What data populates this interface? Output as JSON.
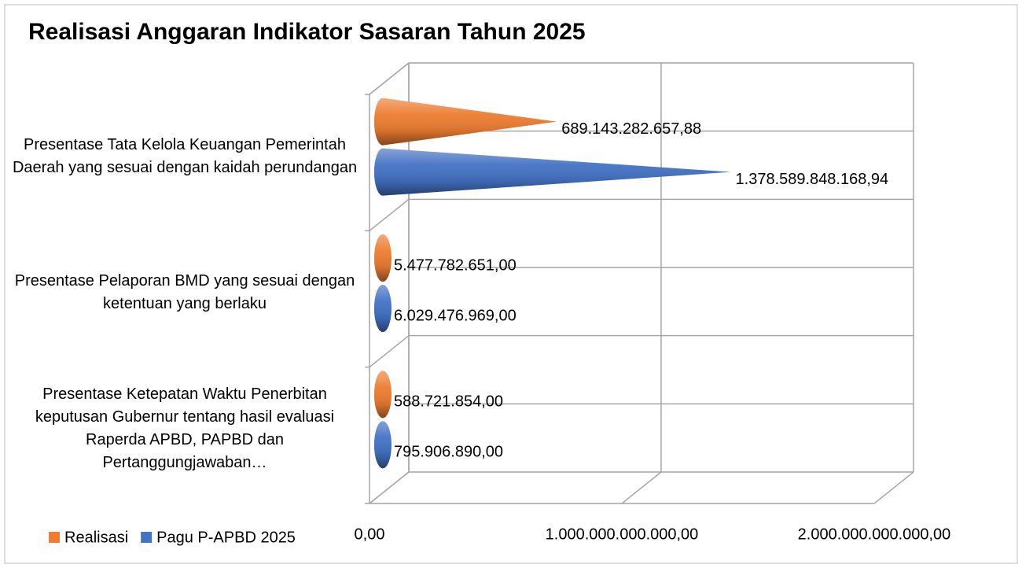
{
  "chart_data": {
    "type": "cone-bar-horizontal",
    "title": "Realisasi Anggaran Indikator Sasaran Tahun 2025",
    "categories": [
      "Presentase Tata Kelola Keuangan Pemerintah Daerah yang sesuai dengan kaidah perundangan",
      "Presentase Pelaporan BMD yang sesuai dengan ketentuan yang berlaku",
      "Presentase Ketepatan Waktu Penerbitan keputusan Gubernur tentang hasil evaluasi Raperda APBD, PAPBD dan Pertanggungjawaban…"
    ],
    "series": [
      {
        "name": "Realisasi",
        "color": "#ed7d31",
        "values": [
          689143282657.88,
          5477782651,
          588721854
        ],
        "value_labels": [
          "689.143.282.657,88",
          "5.477.782.651,00",
          "588.721.854,00"
        ]
      },
      {
        "name": "Pagu P-APBD 2025",
        "color": "#4472c4",
        "values": [
          1378589848168.94,
          6029476969,
          795906890
        ],
        "value_labels": [
          "1.378.589.848.168,94",
          "6.029.476.969,00",
          "795.906.890,00"
        ]
      }
    ],
    "xlim": [
      0,
      2000000000000
    ],
    "xticks": [
      {
        "value": 0,
        "label": "0,00"
      },
      {
        "value": 1000000000000,
        "label": "1.000.000.000.000,00"
      },
      {
        "value": 2000000000000,
        "label": "2.000.000.000.000,00"
      }
    ],
    "grid": true,
    "legend": "bottom-left"
  }
}
